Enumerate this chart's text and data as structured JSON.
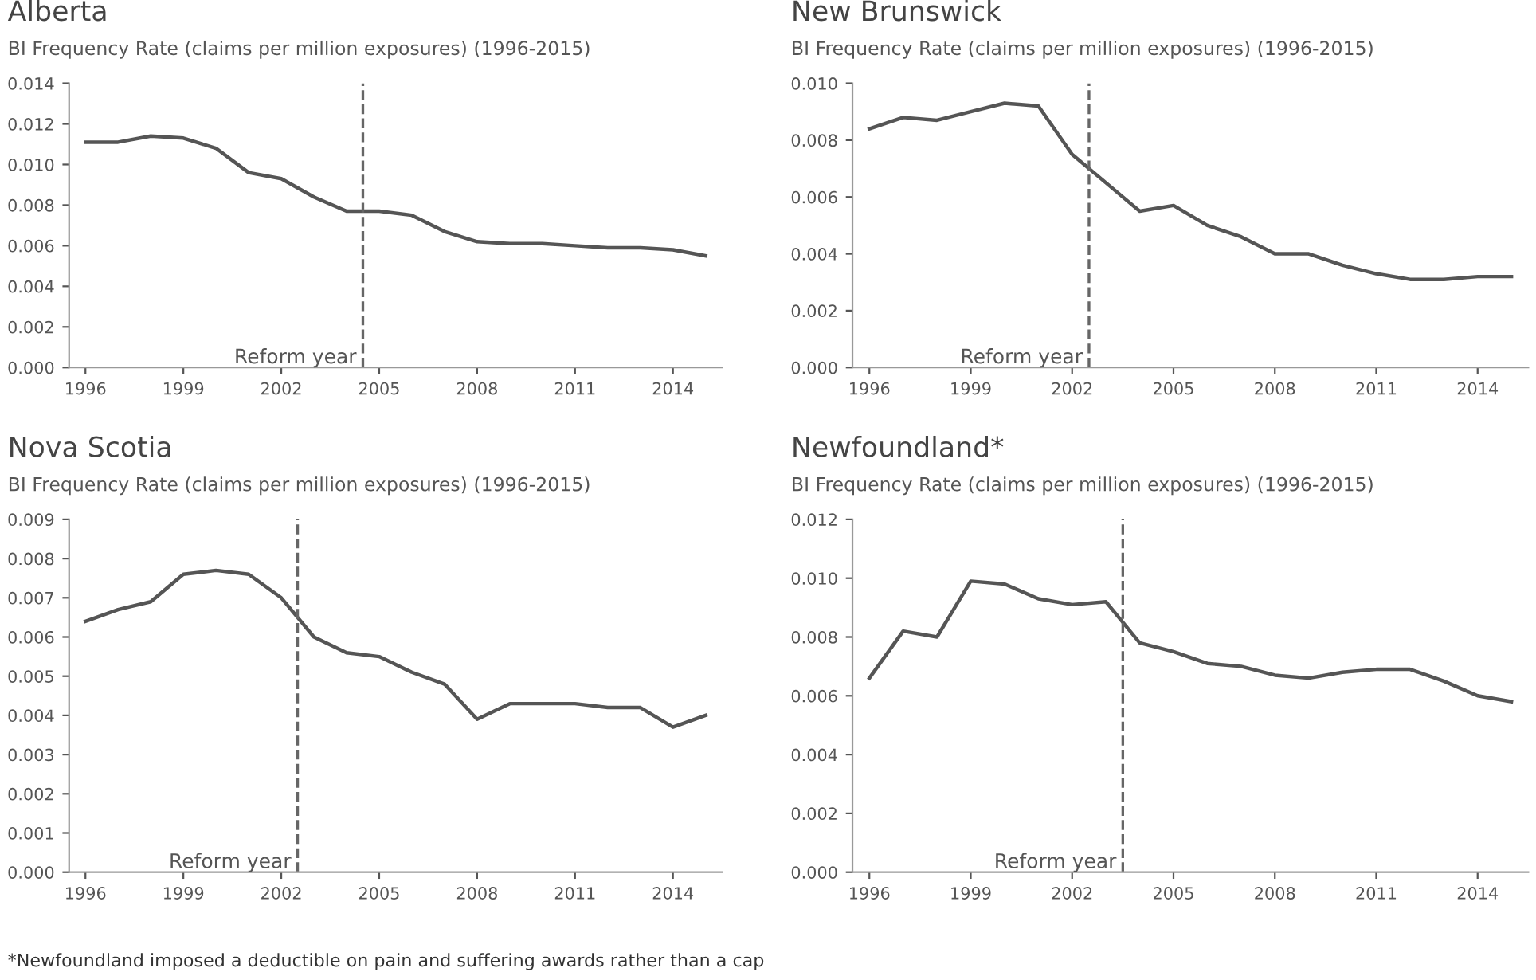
{
  "chart_data": [
    {
      "type": "line",
      "title": "Alberta",
      "subtitle": "BI Frequency Rate (claims per million exposures) (1996-2015)",
      "x": [
        1996,
        1997,
        1998,
        1999,
        2000,
        2001,
        2002,
        2003,
        2004,
        2005,
        2006,
        2007,
        2008,
        2009,
        2010,
        2011,
        2012,
        2013,
        2014,
        2015
      ],
      "series": [
        {
          "color": "#555555",
          "values": [
            0.0111,
            0.0111,
            0.0114,
            0.0113,
            0.0108,
            0.0096,
            0.0093,
            0.0084,
            0.0077,
            0.0077,
            0.0075,
            0.0067,
            0.0062,
            0.0061,
            0.0061,
            0.006,
            0.0059,
            0.0059,
            0.0058,
            0.0055
          ]
        }
      ],
      "xlim": [
        1995.5,
        2015.5
      ],
      "xticks": [
        1996,
        1999,
        2002,
        2005,
        2008,
        2011,
        2014
      ],
      "ylim": [
        0,
        0.014
      ],
      "yticks": [
        {
          "value": 0,
          "label": "0.000"
        },
        {
          "value": 0.002,
          "label": "0.002"
        },
        {
          "value": 0.004,
          "label": "0.004"
        },
        {
          "value": 0.006,
          "label": "0.006"
        },
        {
          "value": 0.008,
          "label": "0.008"
        },
        {
          "value": 0.01,
          "label": "0.010"
        },
        {
          "value": 0.012,
          "label": "0.012"
        },
        {
          "value": 0.014,
          "label": "0.014"
        }
      ],
      "ref_lines": [
        {
          "axis": "x",
          "value": 2004.5,
          "label": "Reform year",
          "color": "#666666",
          "line_style": "dashed"
        }
      ],
      "grid": false,
      "legend": false,
      "marker": "none",
      "line_style": "solid"
    },
    {
      "type": "line",
      "title": "New Brunswick",
      "subtitle": "BI Frequency Rate (claims per million exposures) (1996-2015)",
      "x": [
        1996,
        1997,
        1998,
        1999,
        2000,
        2001,
        2002,
        2003,
        2004,
        2005,
        2006,
        2007,
        2008,
        2009,
        2010,
        2011,
        2012,
        2013,
        2014,
        2015
      ],
      "series": [
        {
          "color": "#555555",
          "values": [
            0.0084,
            0.0088,
            0.0087,
            0.009,
            0.0093,
            0.0092,
            0.0075,
            0.0065,
            0.0055,
            0.0057,
            0.005,
            0.0046,
            0.004,
            0.004,
            0.0036,
            0.0033,
            0.0031,
            0.0031,
            0.0032,
            0.0032
          ]
        }
      ],
      "xlim": [
        1995.5,
        2015.5
      ],
      "xticks": [
        1996,
        1999,
        2002,
        2005,
        2008,
        2011,
        2014
      ],
      "ylim": [
        0,
        0.01
      ],
      "yticks": [
        {
          "value": 0,
          "label": "0.000"
        },
        {
          "value": 0.002,
          "label": "0.002"
        },
        {
          "value": 0.004,
          "label": "0.004"
        },
        {
          "value": 0.006,
          "label": "0.006"
        },
        {
          "value": 0.008,
          "label": "0.008"
        },
        {
          "value": 0.01,
          "label": "0.010"
        }
      ],
      "ref_lines": [
        {
          "axis": "x",
          "value": 2002.5,
          "label": "Reform year",
          "color": "#666666",
          "line_style": "dashed"
        }
      ],
      "grid": false,
      "legend": false,
      "marker": "none",
      "line_style": "solid"
    },
    {
      "type": "line",
      "title": "Nova Scotia",
      "subtitle": "BI Frequency Rate (claims per million exposures) (1996-2015)",
      "x": [
        1996,
        1997,
        1998,
        1999,
        2000,
        2001,
        2002,
        2003,
        2004,
        2005,
        2006,
        2007,
        2008,
        2009,
        2010,
        2011,
        2012,
        2013,
        2014,
        2015
      ],
      "series": [
        {
          "color": "#555555",
          "values": [
            0.0064,
            0.0067,
            0.0069,
            0.0076,
            0.0077,
            0.0076,
            0.007,
            0.006,
            0.0056,
            0.0055,
            0.0051,
            0.0048,
            0.0039,
            0.0043,
            0.0043,
            0.0043,
            0.0042,
            0.0042,
            0.0037,
            0.004
          ]
        }
      ],
      "xlim": [
        1995.5,
        2015.5
      ],
      "xticks": [
        1996,
        1999,
        2002,
        2005,
        2008,
        2011,
        2014
      ],
      "ylim": [
        0,
        0.009
      ],
      "yticks": [
        {
          "value": 0,
          "label": "0.000"
        },
        {
          "value": 0.001,
          "label": "0.001"
        },
        {
          "value": 0.002,
          "label": "0.002"
        },
        {
          "value": 0.003,
          "label": "0.003"
        },
        {
          "value": 0.004,
          "label": "0.004"
        },
        {
          "value": 0.005,
          "label": "0.005"
        },
        {
          "value": 0.006,
          "label": "0.006"
        },
        {
          "value": 0.007,
          "label": "0.007"
        },
        {
          "value": 0.008,
          "label": "0.008"
        },
        {
          "value": 0.009,
          "label": "0.009"
        }
      ],
      "ref_lines": [
        {
          "axis": "x",
          "value": 2002.5,
          "label": "Reform year",
          "color": "#666666",
          "line_style": "dashed"
        }
      ],
      "grid": false,
      "legend": false,
      "marker": "none",
      "line_style": "solid"
    },
    {
      "type": "line",
      "title": "Newfoundland*",
      "subtitle": "BI Frequency Rate (claims per million exposures) (1996-2015)",
      "x": [
        1996,
        1997,
        1998,
        1999,
        2000,
        2001,
        2002,
        2003,
        2004,
        2005,
        2006,
        2007,
        2008,
        2009,
        2010,
        2011,
        2012,
        2013,
        2014,
        2015
      ],
      "series": [
        {
          "color": "#555555",
          "values": [
            0.0066,
            0.0082,
            0.008,
            0.0099,
            0.0098,
            0.0093,
            0.0091,
            0.0092,
            0.0078,
            0.0075,
            0.0071,
            0.007,
            0.0067,
            0.0066,
            0.0068,
            0.0069,
            0.0069,
            0.0065,
            0.006,
            0.0058
          ]
        }
      ],
      "xlim": [
        1995.5,
        2015.5
      ],
      "xticks": [
        1996,
        1999,
        2002,
        2005,
        2008,
        2011,
        2014
      ],
      "ylim": [
        0,
        0.012
      ],
      "yticks": [
        {
          "value": 0,
          "label": "0.000"
        },
        {
          "value": 0.002,
          "label": "0.002"
        },
        {
          "value": 0.004,
          "label": "0.004"
        },
        {
          "value": 0.006,
          "label": "0.006"
        },
        {
          "value": 0.008,
          "label": "0.008"
        },
        {
          "value": 0.01,
          "label": "0.010"
        },
        {
          "value": 0.012,
          "label": "0.012"
        }
      ],
      "ref_lines": [
        {
          "axis": "x",
          "value": 2003.5,
          "label": "Reform year",
          "color": "#666666",
          "line_style": "dashed"
        }
      ],
      "annotations": [
        "*Newfoundland imposed a deductible on pain and suffering awards rather than a cap"
      ],
      "grid": false,
      "legend": false,
      "marker": "none",
      "line_style": "solid"
    }
  ]
}
